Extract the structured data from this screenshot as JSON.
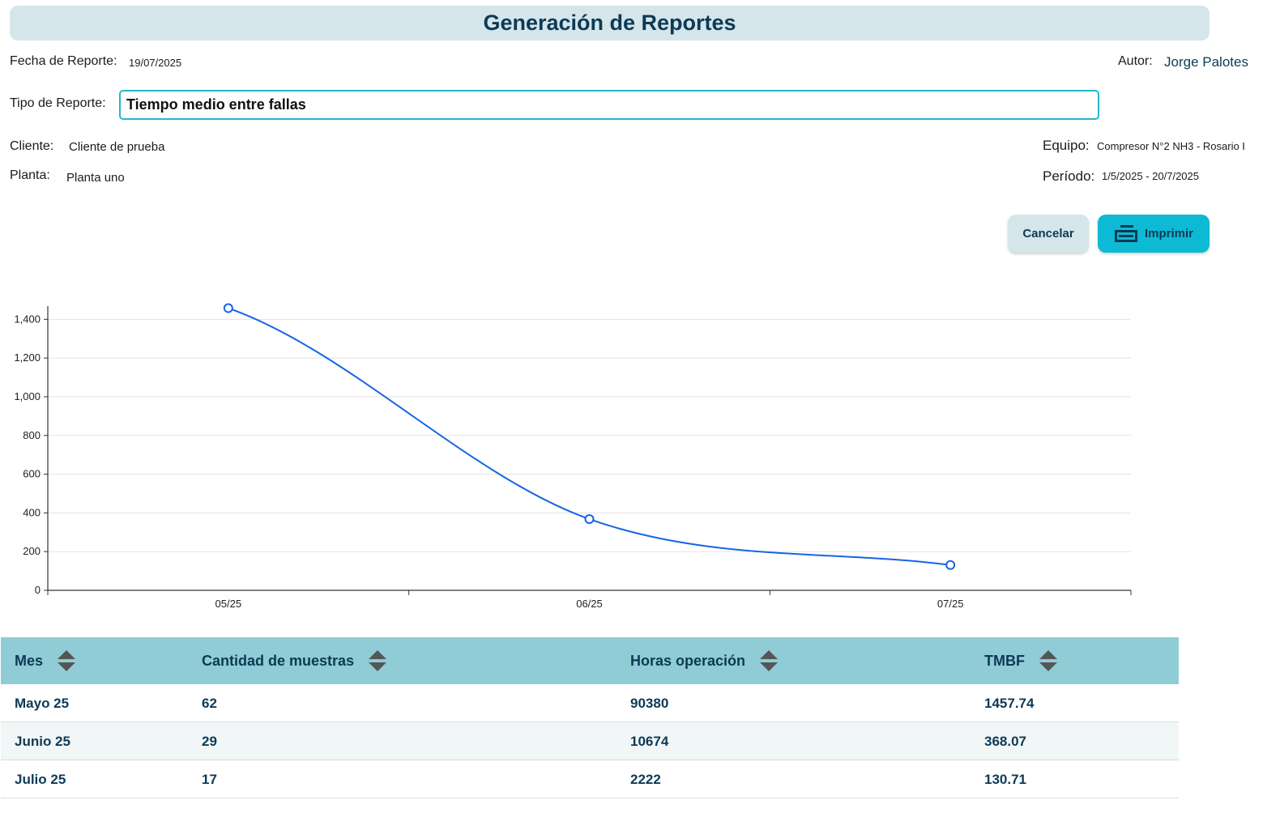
{
  "header": {
    "title": "Generación de Reportes"
  },
  "meta": {
    "fecha_label": "Fecha de Reporte:",
    "fecha_value": "19/07/2025",
    "autor_label": "Autor:",
    "autor_value": "Jorge Palotes",
    "tipo_label": "Tipo de Reporte:",
    "tipo_value": "Tiempo medio entre fallas",
    "cliente_label": "Cliente:",
    "cliente_value": "Cliente de prueba",
    "planta_label": "Planta:",
    "planta_value": "Planta uno",
    "equipo_label": "Equipo:",
    "equipo_value": "Compresor N°2 NH3 - Rosario I",
    "periodo_label": "Período:",
    "periodo_value": "1/5/2025 - 20/7/2025"
  },
  "actions": {
    "cancel_label": "Cancelar",
    "print_label": "Imprimir"
  },
  "colors": {
    "accent": "#0dbad4",
    "line": "#1565e6",
    "header_bg": "#90ccd5",
    "title_bg": "#d4e6ea",
    "title_text": "#0d3a55"
  },
  "chart_data": {
    "type": "line",
    "categories": [
      "05/25",
      "06/25",
      "07/25"
    ],
    "values": [
      1457.74,
      368.07,
      130.71
    ],
    "yticks": [
      "0",
      "200",
      "400",
      "600",
      "800",
      "1,000",
      "1,200",
      "1,400"
    ],
    "ylim": [
      0,
      1460
    ],
    "grid": true,
    "title": "",
    "xlabel": "",
    "ylabel": ""
  },
  "table": {
    "columns": [
      "Mes",
      "Cantidad de muestras",
      "Horas operación",
      "TMBF"
    ],
    "rows": [
      [
        "Mayo 25",
        "62",
        "90380",
        "1457.74"
      ],
      [
        "Junio 25",
        "29",
        "10674",
        "368.07"
      ],
      [
        "Julio 25",
        "17",
        "2222",
        "130.71"
      ]
    ]
  }
}
